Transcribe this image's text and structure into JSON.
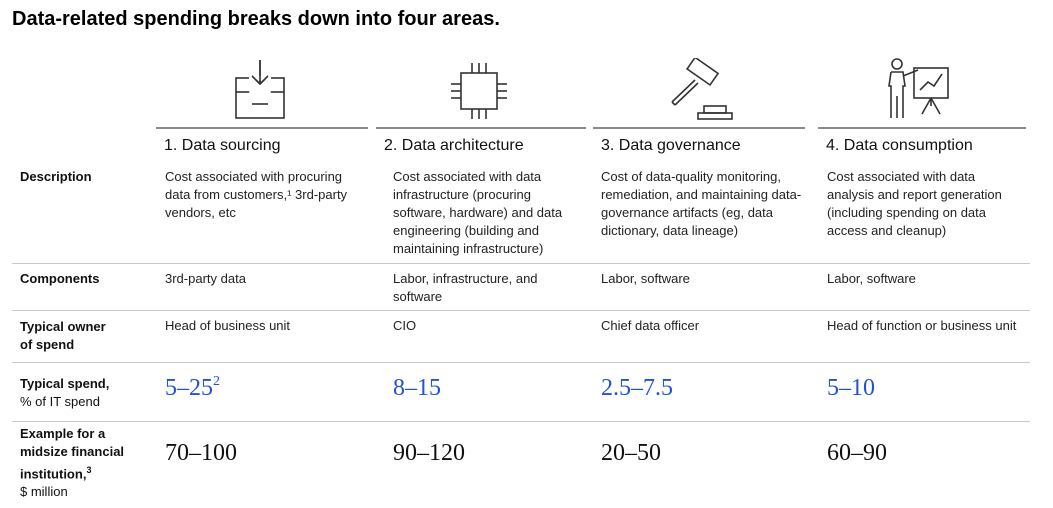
{
  "title": "Data-related spending breaks down into four areas.",
  "columns": [
    {
      "icon": "inbox-download-icon",
      "heading": "1. Data sourcing",
      "description": "Cost associated with procuring data from customers,¹ 3rd-party vendors, etc",
      "components": "3rd-party data",
      "owner": "Head of business unit",
      "spend_value": "5–25",
      "spend_note": "2",
      "example": "70–100"
    },
    {
      "icon": "chip-icon",
      "heading": "2. Data architecture",
      "description": "Cost associated with data infrastructure (procuring software, hardware) and data engineering (building and maintaining infrastructure)",
      "components": "Labor, infrastructure, and software",
      "owner": "CIO",
      "spend_value": "8–15",
      "spend_note": "",
      "example": "90–120"
    },
    {
      "icon": "gavel-icon",
      "heading": "3. Data governance",
      "description": "Cost of data-quality monitoring, remediation, and maintaining data-governance artifacts (eg, data dictionary, data lineage)",
      "components": "Labor, software",
      "owner": "Chief data officer",
      "spend_value": "2.5–7.5",
      "spend_note": "",
      "example": "20–50"
    },
    {
      "icon": "presenter-chart-icon",
      "heading": "4. Data consumption",
      "description": "Cost associated with data analysis and report generation (including spending on data access and cleanup)",
      "components": "Labor, software",
      "owner": "Head of function or business unit",
      "spend_value": "5–10",
      "spend_note": "",
      "example": "60–90"
    }
  ],
  "row_labels": {
    "description": "Description",
    "components": "Components",
    "owner": "Typical owner of spend",
    "spend": "Typical spend,",
    "spend_sub": "% of IT spend",
    "example": "Example for a midsize financial institution,",
    "example_note": "3",
    "example_sub": "$ million"
  },
  "colors": {
    "accent_blue": "#2251d8",
    "rule_gray": "#8a8a8a",
    "divider_gray": "#c8c8c8"
  }
}
